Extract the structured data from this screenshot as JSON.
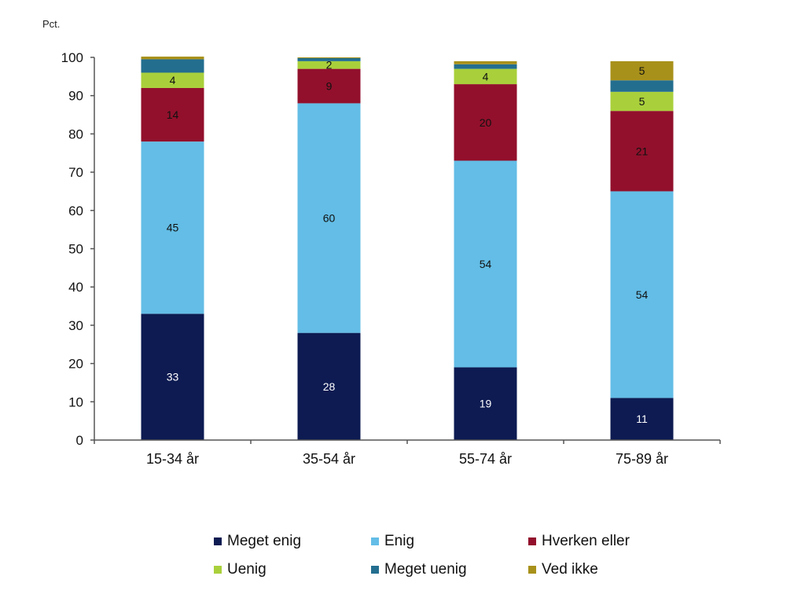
{
  "chart_data": {
    "type": "bar",
    "stacked": true,
    "ylabel": "Pct.",
    "ylim": [
      0,
      100
    ],
    "yticks": [
      0,
      10,
      20,
      30,
      40,
      50,
      60,
      70,
      80,
      90,
      100
    ],
    "grid": false,
    "legend_position": "bottom",
    "categories": [
      "15-34 år",
      "35-54 år",
      "55-74 år",
      "75-89 år"
    ],
    "series": [
      {
        "name": "Meget enig",
        "color": "#0d1b52",
        "label_color": "#ffffff",
        "values": [
          33,
          28,
          19,
          11
        ],
        "labels": [
          "33",
          "28",
          "19",
          "11"
        ]
      },
      {
        "name": "Enig",
        "color": "#63bde6",
        "label_color": "#111111",
        "values": [
          45,
          60,
          54,
          54
        ],
        "labels": [
          "45",
          "60",
          "54",
          "54"
        ]
      },
      {
        "name": "Hverken eller",
        "color": "#92102c",
        "label_color": "#111111",
        "values": [
          14,
          9,
          20,
          21
        ],
        "labels": [
          "14",
          "9",
          "20",
          "21"
        ]
      },
      {
        "name": "Uenig",
        "color": "#a9d03b",
        "label_color": "#111111",
        "values": [
          4,
          2,
          4,
          5
        ],
        "labels": [
          "4",
          "2",
          "4",
          "5"
        ]
      },
      {
        "name": "Meget uenig",
        "color": "#236e8f",
        "label_color": "#111111",
        "values": [
          3.5,
          0.8,
          1.2,
          3
        ],
        "labels": [
          "",
          "",
          "",
          ""
        ]
      },
      {
        "name": "Ved ikke",
        "color": "#a8911a",
        "label_color": "#111111",
        "values": [
          0.7,
          0.2,
          0.8,
          5
        ],
        "labels": [
          "",
          "",
          "",
          "5"
        ]
      }
    ]
  }
}
